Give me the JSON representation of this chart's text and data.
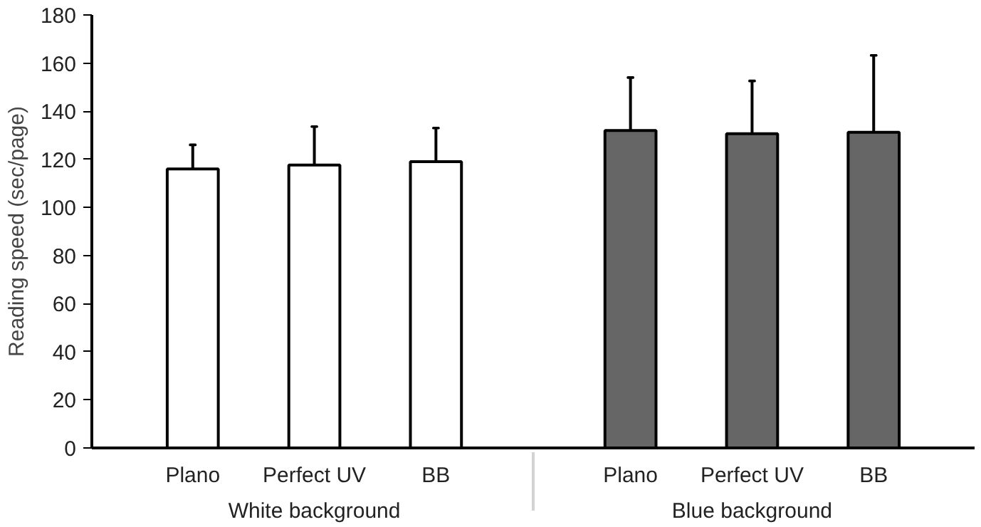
{
  "chart_data": {
    "type": "bar",
    "ylabel": "Reading speed (sec/page)",
    "categories": [
      "Plano",
      "Perfect UV",
      "BB",
      "Plano",
      "Perfect UV",
      "BB"
    ],
    "values": [
      116,
      117.6,
      119,
      132,
      130.6,
      131.2
    ],
    "colors": [
      "#ffffff",
      "#ffffff",
      "#ffffff",
      "#666666",
      "#666666",
      "#666666"
    ],
    "errors": [
      10,
      16,
      14,
      22,
      22,
      32
    ],
    "annotations": [
      "White background",
      "Blue background"
    ],
    "ylim": [
      0,
      180
    ],
    "yticks": [
      0,
      20,
      40,
      60,
      80,
      100,
      120,
      140,
      160,
      180
    ],
    "grid": false
  }
}
